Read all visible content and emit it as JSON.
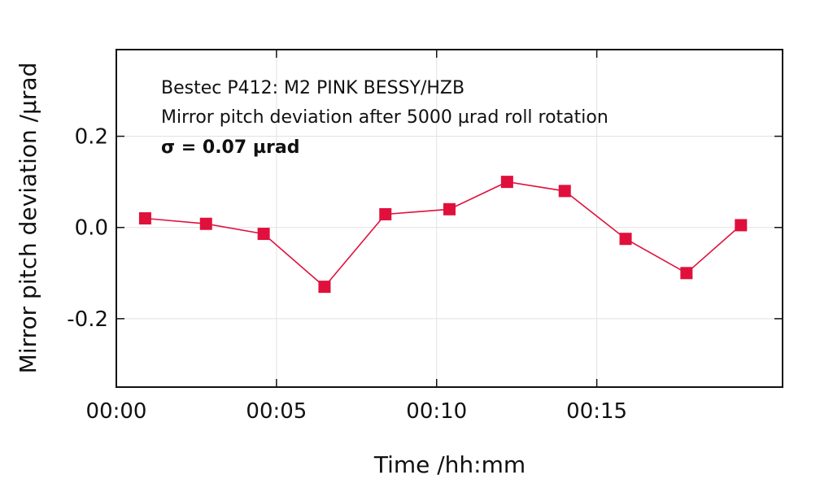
{
  "chart_data": {
    "type": "line",
    "xlabel": "Time /hh:mm",
    "ylabel": "Mirror pitch deviation /µrad",
    "annotations": [
      "Bestec P412: M2 PINK BESSY/HZB",
      "Mirror pitch deviation after 5000 µrad roll rotation",
      "σ = 0.07 µrad"
    ],
    "x_unit": "minutes",
    "xlim": [
      0,
      20.8
    ],
    "ylim": [
      -0.35,
      0.39
    ],
    "x_ticks": [
      0,
      5,
      10,
      15
    ],
    "x_tick_labels": [
      "00:00",
      "00:05",
      "00:10",
      "00:15"
    ],
    "y_ticks": [
      -0.2,
      0.0,
      0.2
    ],
    "y_tick_labels": [
      "-0.2",
      "0.0",
      "0.2"
    ],
    "grid": true,
    "series": [
      {
        "x": [
          0.9,
          2.8,
          4.6,
          6.5,
          8.4,
          10.4,
          12.2,
          14.0,
          15.9,
          17.8,
          19.5
        ],
        "values": [
          0.02,
          0.008,
          -0.014,
          -0.13,
          0.029,
          0.04,
          0.1,
          0.08,
          -0.025,
          -0.1,
          0.005
        ],
        "color": "#e0103c"
      }
    ]
  }
}
